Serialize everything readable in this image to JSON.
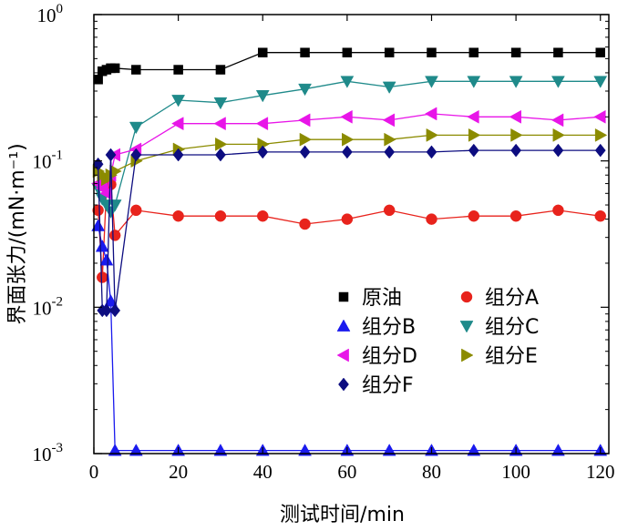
{
  "chart_data": {
    "type": "line",
    "xlabel": "测试时间/min",
    "ylabel": "界面张力/(mN·m⁻¹)",
    "xlim": [
      0,
      122
    ],
    "ylim": [
      0.001,
      1
    ],
    "yscale": "log",
    "x_ticks": [
      "0",
      "20",
      "40",
      "60",
      "80",
      "100",
      "120"
    ],
    "y_ticks": [
      {
        "base": "10",
        "exp": "0"
      },
      {
        "base": "10",
        "exp": "-1"
      },
      {
        "base": "10",
        "exp": "-2"
      },
      {
        "base": "10",
        "exp": "-3"
      }
    ],
    "legend_position": "lower-right",
    "series": [
      {
        "name": "原油",
        "color": "#000000",
        "marker": "square",
        "x": [
          1,
          2,
          3,
          4,
          5,
          10,
          20,
          30,
          40,
          50,
          60,
          70,
          80,
          90,
          100,
          110,
          120
        ],
        "y": [
          0.36,
          0.41,
          0.42,
          0.43,
          0.43,
          0.42,
          0.42,
          0.42,
          0.55,
          0.55,
          0.55,
          0.55,
          0.55,
          0.55,
          0.55,
          0.55,
          0.55
        ]
      },
      {
        "name": "组分A",
        "color": "#e8231c",
        "marker": "circle",
        "x": [
          1,
          2,
          3,
          4,
          5,
          10,
          20,
          30,
          40,
          50,
          60,
          70,
          80,
          90,
          100,
          110,
          120
        ],
        "y": [
          0.046,
          0.016,
          0.066,
          0.069,
          0.031,
          0.046,
          0.042,
          0.042,
          0.042,
          0.037,
          0.04,
          0.046,
          0.04,
          0.042,
          0.042,
          0.046,
          0.042
        ]
      },
      {
        "name": "组分B",
        "color": "#1a1aee",
        "marker": "triangle-up",
        "x": [
          1,
          2,
          3,
          4,
          5,
          10,
          20,
          30,
          40,
          50,
          60,
          70,
          80,
          90,
          100,
          110,
          120
        ],
        "y": [
          0.036,
          0.026,
          0.021,
          0.011,
          0.00105,
          0.00105,
          0.00105,
          0.00105,
          0.00105,
          0.00105,
          0.00105,
          0.00105,
          0.00105,
          0.00105,
          0.00105,
          0.00105,
          0.00105
        ]
      },
      {
        "name": "组分C",
        "color": "#1f8a8a",
        "marker": "triangle-down",
        "x": [
          1,
          2,
          3,
          4,
          5,
          10,
          20,
          30,
          40,
          50,
          60,
          70,
          80,
          90,
          100,
          110,
          120
        ],
        "y": [
          0.065,
          0.055,
          0.05,
          0.045,
          0.05,
          0.17,
          0.26,
          0.25,
          0.28,
          0.31,
          0.35,
          0.32,
          0.35,
          0.35,
          0.35,
          0.35,
          0.35
        ]
      },
      {
        "name": "组分D",
        "color": "#e815e8",
        "marker": "triangle-left",
        "x": [
          1,
          2,
          3,
          4,
          5,
          10,
          20,
          30,
          40,
          50,
          60,
          70,
          80,
          90,
          100,
          110,
          120
        ],
        "y": [
          0.07,
          0.065,
          0.06,
          0.08,
          0.11,
          0.12,
          0.18,
          0.18,
          0.18,
          0.19,
          0.2,
          0.19,
          0.21,
          0.2,
          0.2,
          0.19,
          0.2
        ]
      },
      {
        "name": "组分E",
        "color": "#8b8b00",
        "marker": "triangle-right",
        "x": [
          1,
          2,
          3,
          4,
          5,
          10,
          20,
          30,
          40,
          50,
          60,
          70,
          80,
          90,
          100,
          110,
          120
        ],
        "y": [
          0.085,
          0.08,
          0.075,
          0.08,
          0.085,
          0.1,
          0.12,
          0.13,
          0.13,
          0.14,
          0.14,
          0.14,
          0.15,
          0.15,
          0.15,
          0.15,
          0.15
        ]
      },
      {
        "name": "组分F",
        "color": "#0d0d80",
        "marker": "diamond",
        "x": [
          1,
          2,
          3,
          4,
          5,
          10,
          20,
          30,
          40,
          50,
          60,
          70,
          80,
          90,
          100,
          110,
          120
        ],
        "y": [
          0.095,
          0.0095,
          0.0095,
          0.11,
          0.0095,
          0.11,
          0.11,
          0.11,
          0.115,
          0.115,
          0.115,
          0.115,
          0.115,
          0.118,
          0.118,
          0.118,
          0.118
        ]
      }
    ]
  }
}
